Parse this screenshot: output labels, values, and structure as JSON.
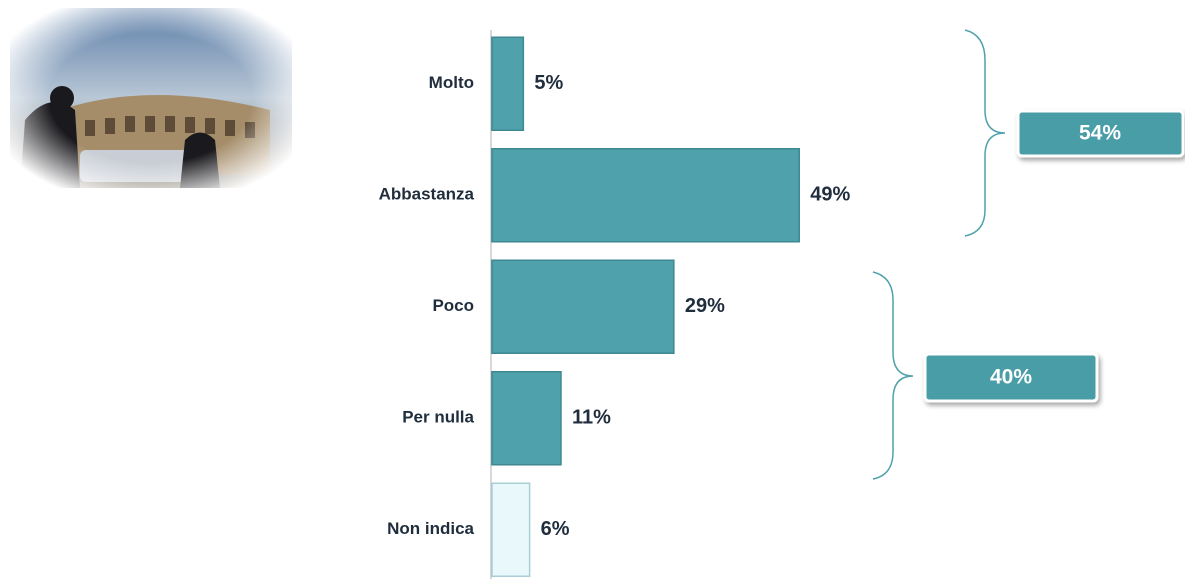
{
  "chart_data": {
    "type": "hbar",
    "categories": [
      "Molto",
      "Abbastanza",
      "Poco",
      "Per nulla",
      "Non indica"
    ],
    "values": [
      5,
      49,
      29,
      11,
      6
    ],
    "value_labels": [
      "5%",
      "49%",
      "29%",
      "11%",
      "6%"
    ],
    "colors": [
      "#4fa1ab",
      "#4fa1ab",
      "#4fa1ab",
      "#4fa1ab",
      "#e9f8fb"
    ],
    "annotations": [
      "54%",
      "40%"
    ]
  }
}
